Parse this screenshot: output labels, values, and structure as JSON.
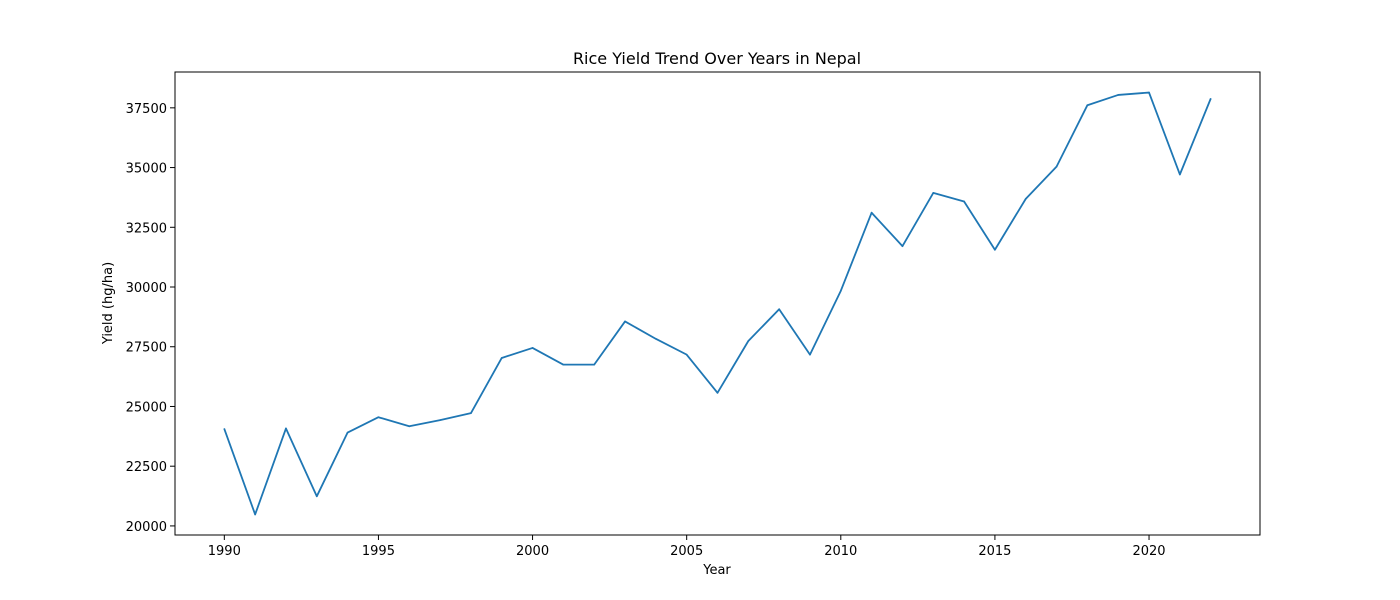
{
  "chart_data": {
    "type": "line",
    "title": "Rice Yield Trend Over Years in Nepal",
    "xlabel": "Year",
    "ylabel": "Yield (hg/ha)",
    "xlim": [
      1988.4,
      2023.6
    ],
    "ylim": [
      19620,
      39000
    ],
    "xticks": [
      1990,
      1995,
      2000,
      2005,
      2010,
      2015,
      2020
    ],
    "yticks": [
      20000,
      22500,
      25000,
      27500,
      30000,
      32500,
      35000,
      37500
    ],
    "grid": false,
    "series_color": "#1f77b4",
    "x": [
      1990,
      1991,
      1992,
      1993,
      1994,
      1995,
      1996,
      1997,
      1998,
      1999,
      2000,
      2001,
      2002,
      2003,
      2004,
      2005,
      2006,
      2007,
      2008,
      2009,
      2010,
      2011,
      2012,
      2013,
      2014,
      2015,
      2016,
      2017,
      2018,
      2019,
      2020,
      2021,
      2022
    ],
    "series": [
      {
        "values": [
          24060,
          20480,
          24080,
          21240,
          23910,
          24550,
          24170,
          24430,
          24720,
          27030,
          27450,
          26750,
          26750,
          28560,
          27830,
          27170,
          25570,
          27740,
          29070,
          27170,
          29840,
          33110,
          31710,
          33940,
          33580,
          31560,
          33690,
          35040,
          37610,
          38040,
          38140,
          34710,
          37880
        ]
      }
    ]
  }
}
